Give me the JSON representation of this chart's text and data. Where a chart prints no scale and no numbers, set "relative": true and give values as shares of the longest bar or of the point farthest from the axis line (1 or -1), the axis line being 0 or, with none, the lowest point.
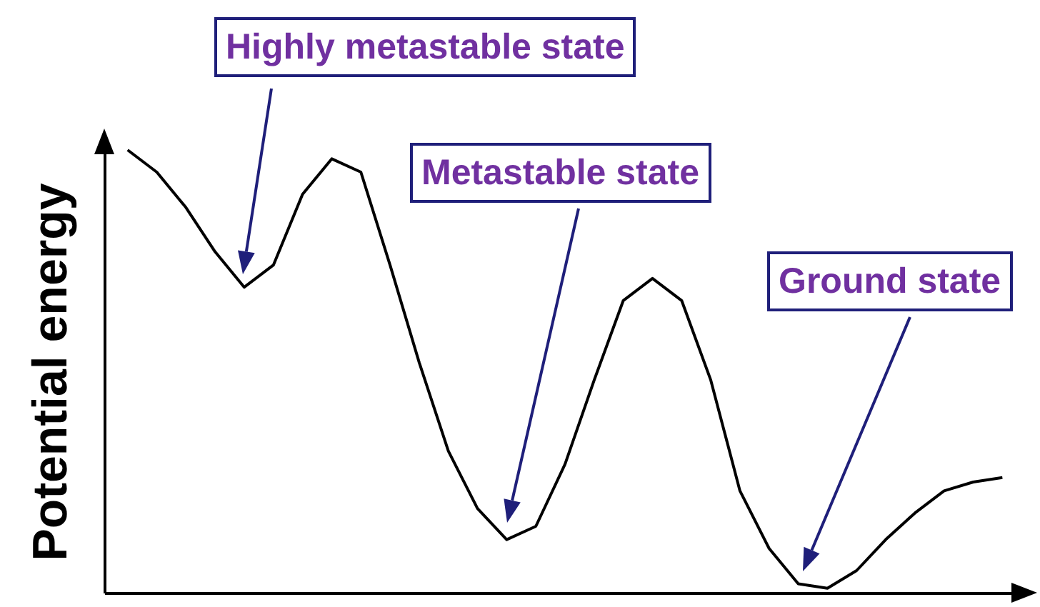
{
  "chart_data": {
    "type": "line",
    "ylabel": "Potential energy",
    "relative": true,
    "color": "#000000",
    "categories": [
      null,
      null,
      null,
      null,
      null,
      null,
      null,
      null,
      null,
      null,
      null,
      null,
      null,
      null,
      null,
      null,
      null,
      null,
      null,
      null,
      null,
      null,
      null,
      null,
      null,
      null,
      null,
      null,
      null,
      null,
      null
    ],
    "values": [
      1.0,
      0.95,
      0.87,
      0.77,
      0.69,
      0.74,
      0.9,
      0.98,
      0.95,
      0.74,
      0.52,
      0.32,
      0.19,
      0.12,
      0.15,
      0.29,
      0.48,
      0.66,
      0.71,
      0.66,
      0.48,
      0.23,
      0.1,
      0.02,
      0.01,
      0.05,
      0.12,
      0.18,
      0.23,
      0.25,
      0.26
    ],
    "annotations": [
      "Highly metastable state",
      "Metastable state",
      "Ground state"
    ]
  }
}
